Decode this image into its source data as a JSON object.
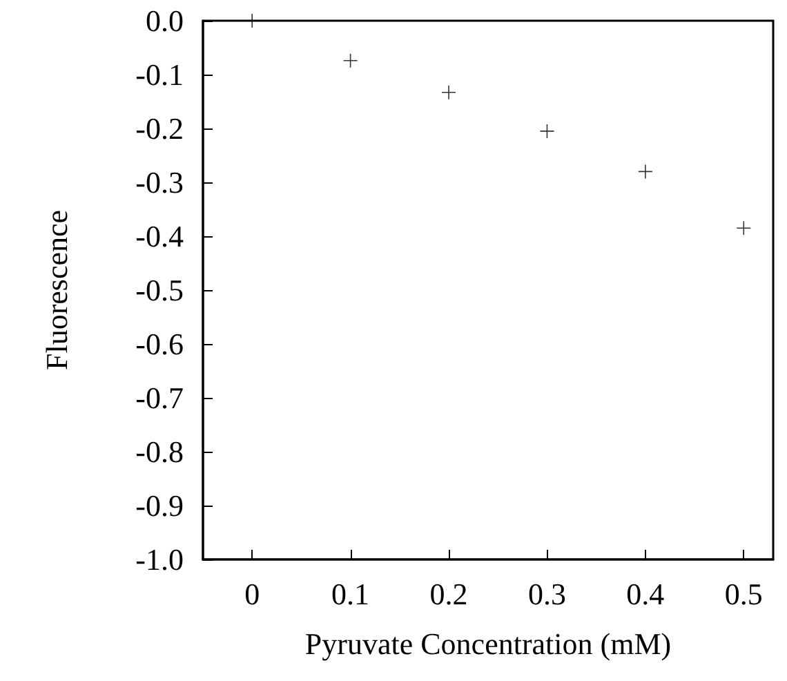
{
  "chart_data": {
    "type": "scatter",
    "xlabel": "Pyruvate Concentration (mM)",
    "ylabel": "Fluorescence",
    "x": [
      0,
      0.1,
      0.2,
      0.3,
      0.4,
      0.5
    ],
    "values": [
      0.0,
      -0.074,
      -0.133,
      -0.205,
      -0.28,
      -0.385
    ],
    "color": "#000000",
    "marker": "cross",
    "grid": false,
    "xlim": [
      -0.05,
      0.53
    ],
    "xticks": [
      0,
      0.1,
      0.2,
      0.3,
      0.4,
      0.5
    ],
    "ylim": [
      -1.0,
      0.0
    ],
    "yticks": [
      {
        "value": -1.0,
        "label": "-1.0"
      },
      -0.9,
      -0.8,
      -0.7,
      -0.6,
      -0.5,
      -0.4,
      -0.3,
      -0.2,
      -0.1,
      {
        "value": 0.0,
        "label": "0.0"
      }
    ]
  }
}
